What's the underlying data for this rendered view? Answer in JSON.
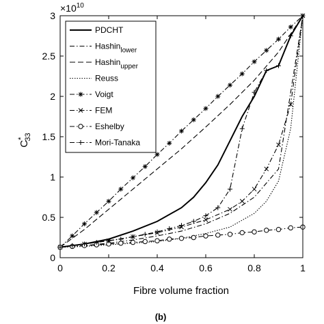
{
  "chart_data": {
    "type": "line",
    "xlabel": "Fibre volume fraction",
    "ylabel": {
      "base": "C",
      "sup": "*",
      "sub": "33"
    },
    "y_multiplier": {
      "base": "×10",
      "exponent": "10"
    },
    "caption": "(b)",
    "xlim": [
      0,
      1
    ],
    "ylim": [
      0,
      3
    ],
    "xticks": [
      0,
      0.2,
      0.4,
      0.6,
      0.8,
      1
    ],
    "yticks": [
      0,
      0.5,
      1,
      1.5,
      2,
      2.5,
      3
    ],
    "legend": "upper left",
    "series": [
      {
        "name": "PDCHT",
        "color": "#000000",
        "dash": "solid",
        "marker": "none",
        "x": [
          0,
          0.1,
          0.2,
          0.3,
          0.4,
          0.5,
          0.55,
          0.6,
          0.65,
          0.7,
          0.75,
          0.8,
          0.85,
          0.9,
          0.95,
          1
        ],
        "values": [
          0.13,
          0.17,
          0.23,
          0.33,
          0.45,
          0.62,
          0.75,
          0.93,
          1.15,
          1.45,
          1.75,
          2.0,
          2.32,
          2.38,
          2.75,
          3.0
        ]
      },
      {
        "name": "Hashin",
        "name_sub": "lower",
        "color": "#000000",
        "dash": "dashdot",
        "marker": "none",
        "x": [
          0,
          0.1,
          0.2,
          0.3,
          0.4,
          0.5,
          0.6,
          0.7,
          0.8,
          0.9,
          1
        ],
        "values": [
          0.13,
          0.15,
          0.18,
          0.22,
          0.27,
          0.33,
          0.42,
          0.55,
          0.75,
          1.1,
          3.0
        ]
      },
      {
        "name": "Hashin",
        "name_sub": "upper",
        "color": "#000000",
        "dash": "dashed",
        "marker": "none",
        "x": [
          0,
          0.1,
          0.2,
          0.3,
          0.4,
          0.5,
          0.6,
          0.7,
          0.8,
          0.9,
          1
        ],
        "values": [
          0.13,
          0.35,
          0.6,
          0.85,
          1.1,
          1.35,
          1.62,
          1.9,
          2.2,
          2.55,
          3.0
        ]
      },
      {
        "name": "Reuss",
        "color": "#000000",
        "dash": "dotted",
        "marker": "none",
        "x": [
          0,
          0.1,
          0.2,
          0.3,
          0.4,
          0.5,
          0.6,
          0.7,
          0.8,
          0.85,
          0.9,
          0.95,
          1
        ],
        "values": [
          0.13,
          0.14,
          0.16,
          0.18,
          0.2,
          0.24,
          0.3,
          0.38,
          0.55,
          0.7,
          0.95,
          1.6,
          3.0
        ]
      },
      {
        "name": "Voigt",
        "color": "#000000",
        "dash": "dashdot",
        "marker": "*",
        "x": [
          0,
          0.05,
          0.1,
          0.15,
          0.2,
          0.25,
          0.3,
          0.35,
          0.4,
          0.45,
          0.5,
          0.55,
          0.6,
          0.65,
          0.7,
          0.75,
          0.8,
          0.85,
          0.9,
          0.95,
          1
        ],
        "values": [
          0.13,
          0.27,
          0.42,
          0.56,
          0.7,
          0.85,
          0.99,
          1.13,
          1.28,
          1.42,
          1.57,
          1.71,
          1.85,
          2.0,
          2.14,
          2.28,
          2.43,
          2.57,
          2.71,
          2.86,
          3.0
        ]
      },
      {
        "name": "FEM",
        "color": "#000000",
        "dash": "dashdot",
        "marker": "x",
        "x": [
          0,
          0.1,
          0.2,
          0.3,
          0.4,
          0.5,
          0.6,
          0.7,
          0.75,
          0.8,
          0.85,
          0.9,
          0.95,
          1
        ],
        "values": [
          0.13,
          0.17,
          0.21,
          0.26,
          0.31,
          0.38,
          0.47,
          0.6,
          0.7,
          0.85,
          1.1,
          1.4,
          1.9,
          3.0
        ]
      },
      {
        "name": "Eshelby",
        "color": "#000000",
        "dash": "dashdot",
        "marker": "o",
        "x": [
          0,
          0.05,
          0.1,
          0.15,
          0.2,
          0.25,
          0.3,
          0.35,
          0.4,
          0.45,
          0.5,
          0.55,
          0.6,
          0.65,
          0.7,
          0.75,
          0.8,
          0.85,
          0.9,
          0.95,
          1
        ],
        "values": [
          0.13,
          0.14,
          0.15,
          0.16,
          0.17,
          0.18,
          0.19,
          0.2,
          0.21,
          0.23,
          0.24,
          0.25,
          0.27,
          0.28,
          0.29,
          0.31,
          0.32,
          0.34,
          0.35,
          0.37,
          0.38
        ]
      },
      {
        "name": "Mori-Tanaka",
        "color": "#000000",
        "dash": "dashdot",
        "marker": "+",
        "x": [
          0,
          0.05,
          0.1,
          0.15,
          0.2,
          0.25,
          0.3,
          0.35,
          0.4,
          0.45,
          0.5,
          0.55,
          0.6,
          0.65,
          0.7,
          0.75,
          0.8,
          0.85,
          0.9,
          0.95,
          1
        ],
        "values": [
          0.13,
          0.15,
          0.17,
          0.19,
          0.21,
          0.23,
          0.26,
          0.29,
          0.32,
          0.36,
          0.4,
          0.45,
          0.52,
          0.62,
          0.85,
          1.6,
          2.05,
          2.32,
          2.38,
          2.75,
          3.0
        ]
      }
    ]
  }
}
